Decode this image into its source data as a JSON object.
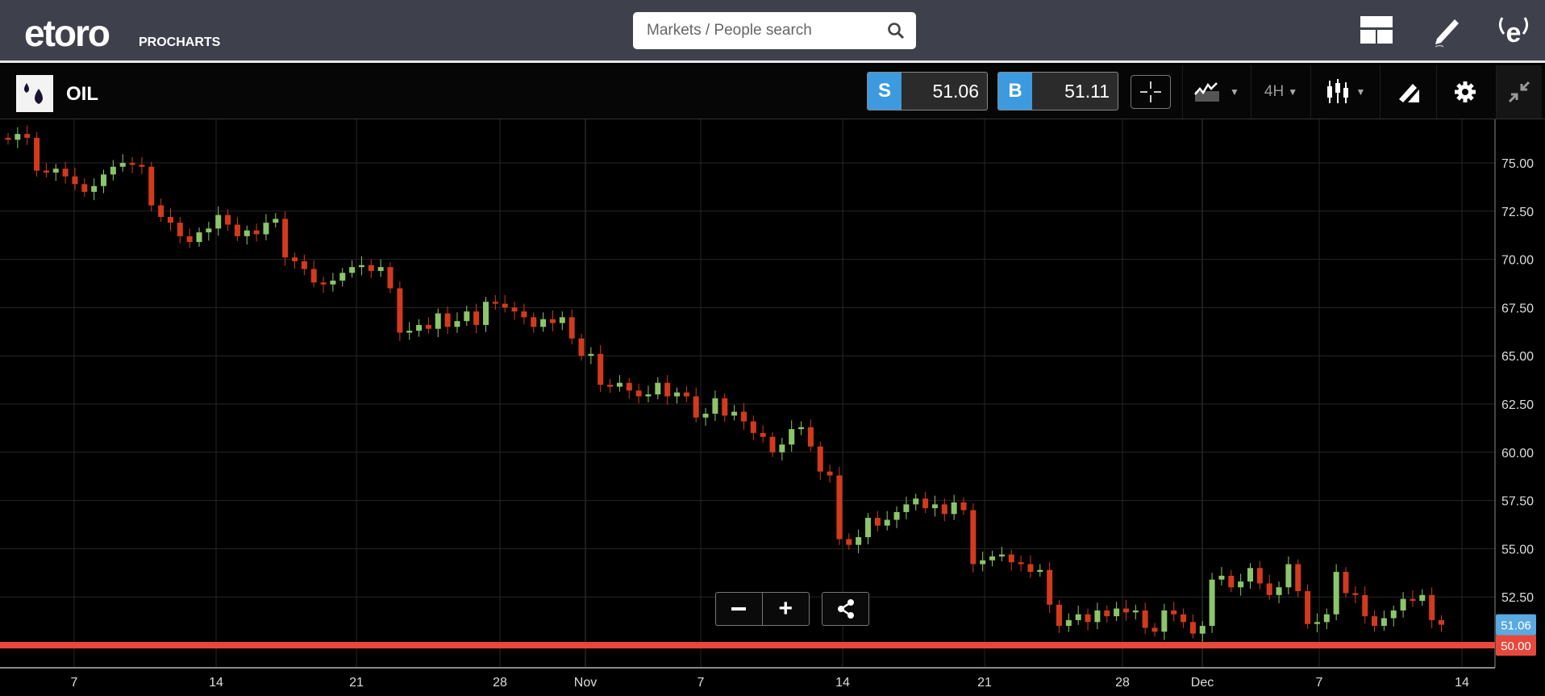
{
  "header": {
    "logo_text": "etoro",
    "logo_sub": "PROCHARTS",
    "search_placeholder": "Markets / People search",
    "icons": [
      "layout-icon",
      "pencil-icon",
      "etoro-profile-icon"
    ]
  },
  "toolbar": {
    "instrument": "OIL",
    "sell_label": "S",
    "sell_price": "51.06",
    "buy_label": "B",
    "buy_price": "51.11",
    "timeframe": "4H",
    "icons": [
      "crosshair-icon",
      "indicators-icon",
      "timeframe-dropdown",
      "candlestick-icon",
      "drawing-tools-icon",
      "gear-icon",
      "collapse-icon"
    ]
  },
  "colors": {
    "up": "#8cc56a",
    "down": "#d23a1c",
    "accent": "#3d9ade",
    "alert_line": "#e8483c",
    "header_bg": "#3e404c"
  },
  "chart_data": {
    "type": "candlestick",
    "instrument": "OIL",
    "interval": "4H",
    "ylim": [
      49.2,
      76.8
    ],
    "y_ticks": [
      "75.00",
      "72.50",
      "70.00",
      "67.50",
      "65.00",
      "62.50",
      "60.00",
      "57.50",
      "55.00",
      "52.50"
    ],
    "x_ticks": [
      "7",
      "14",
      "21",
      "28",
      "Nov",
      "7",
      "14",
      "21",
      "28",
      "Dec",
      "7",
      "14"
    ],
    "current_price": "51.06",
    "alert_level": "50.00",
    "grid": true,
    "closes": [
      76.2,
      76.5,
      76.3,
      74.6,
      74.5,
      74.7,
      74.3,
      73.9,
      73.5,
      73.8,
      74.4,
      74.8,
      75.0,
      74.9,
      74.8,
      72.8,
      72.2,
      71.9,
      71.2,
      70.9,
      71.4,
      71.6,
      72.3,
      71.8,
      71.2,
      71.5,
      71.3,
      71.9,
      72.1,
      70.1,
      69.9,
      69.5,
      68.8,
      68.7,
      68.9,
      69.3,
      69.6,
      69.7,
      69.4,
      69.6,
      68.5,
      66.2,
      66.3,
      66.6,
      66.4,
      67.2,
      66.5,
      66.8,
      67.3,
      66.6,
      67.8,
      67.7,
      67.5,
      67.3,
      67.0,
      66.5,
      66.9,
      66.7,
      67.0,
      65.9,
      65.0,
      65.1,
      63.5,
      63.4,
      63.6,
      63.2,
      62.9,
      63.0,
      63.6,
      62.9,
      63.1,
      62.9,
      61.8,
      62.0,
      62.8,
      61.9,
      62.1,
      61.6,
      61.0,
      60.8,
      60.0,
      60.4,
      61.2,
      61.3,
      60.3,
      59.0,
      58.8,
      55.5,
      55.2,
      55.6,
      56.6,
      56.2,
      56.5,
      56.9,
      57.3,
      57.6,
      57.1,
      57.3,
      56.8,
      57.4,
      57.0,
      54.2,
      54.4,
      54.6,
      54.7,
      54.3,
      54.2,
      53.8,
      53.9,
      52.1,
      51.0,
      51.3,
      51.6,
      51.2,
      51.8,
      51.5,
      51.9,
      51.7,
      51.8,
      50.9,
      50.7,
      51.8,
      51.6,
      51.2,
      50.6,
      51.0,
      53.4,
      53.6,
      53.0,
      53.3,
      54.0,
      53.2,
      52.6,
      53.0,
      54.2,
      52.8,
      51.1,
      51.2,
      51.6,
      53.8,
      52.7,
      52.6,
      51.5,
      51.0,
      51.4,
      51.8,
      52.4,
      52.3,
      52.6,
      51.3,
      51.06
    ]
  }
}
